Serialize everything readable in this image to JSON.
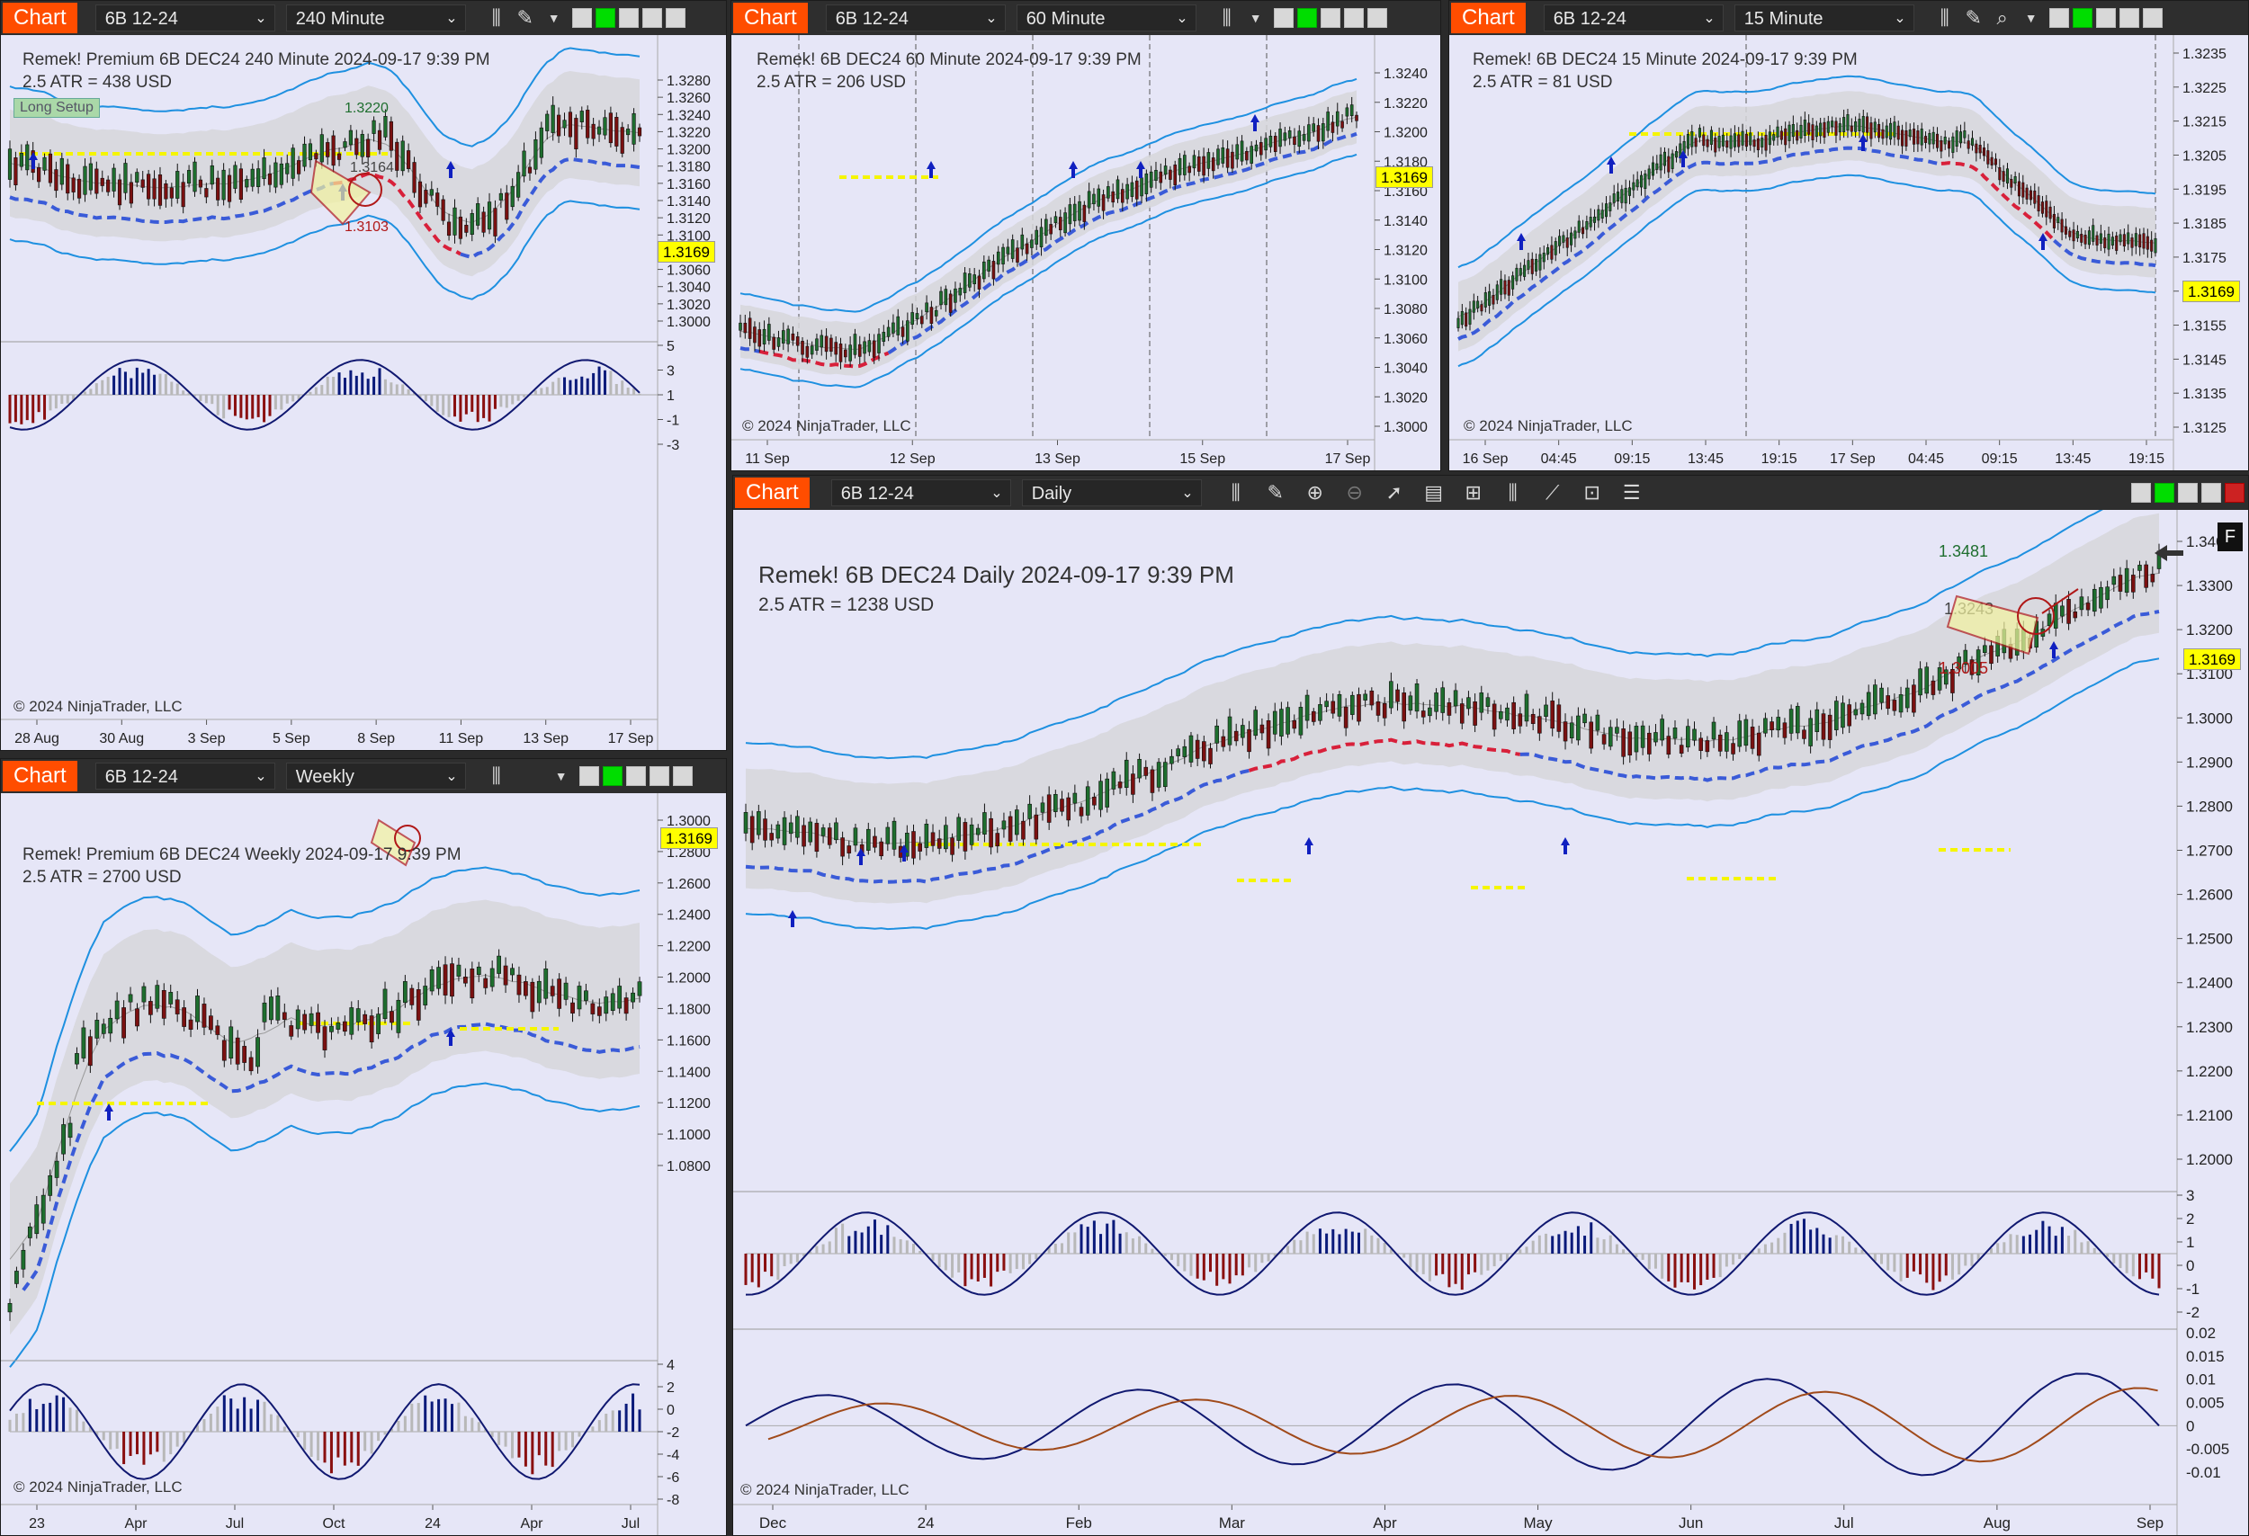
{
  "app": {
    "chart_label": "Chart"
  },
  "windows": {
    "w240": {
      "instrument": "6B 12-24",
      "timeframe": "240 Minute",
      "title": "Remek!  Premium  6B DEC24  240 Minute  2024-09-17 9:39 PM",
      "atr": "2.5 ATR = 438 USD",
      "badge": "Long Setup",
      "price": "1.3169",
      "labels": {
        "a": "1.3164",
        "b": "1.3103",
        "c": "1.3220"
      },
      "yticks": [
        "1.3280",
        "1.3260",
        "1.3240",
        "1.3220",
        "1.3200",
        "1.3180",
        "1.3160",
        "1.3140",
        "1.3120",
        "1.3100",
        "1.3080",
        "1.3060",
        "1.3040",
        "1.3020",
        "1.3000"
      ],
      "osc_ticks": [
        "5",
        "3",
        "1",
        "-1",
        "-3"
      ],
      "xticks": [
        "28 Aug",
        "30 Aug",
        "3 Sep",
        "5 Sep",
        "8 Sep",
        "11 Sep",
        "13 Sep",
        "17 Sep"
      ],
      "copyright": "© 2024 NinjaTrader, LLC"
    },
    "w60": {
      "instrument": "6B 12-24",
      "timeframe": "60 Minute",
      "title": "Remek!  6B DEC24  60 Minute  2024-09-17 9:39 PM",
      "atr": "2.5 ATR = 206 USD",
      "price": "1.3169",
      "yticks": [
        "1.3240",
        "1.3220",
        "1.3200",
        "1.3180",
        "1.3160",
        "1.3140",
        "1.3120",
        "1.3100",
        "1.3080",
        "1.3060",
        "1.3040",
        "1.3020",
        "1.3000"
      ],
      "xticks": [
        "11 Sep",
        "12 Sep",
        "13 Sep",
        "15 Sep",
        "17 Sep"
      ],
      "copyright": "© 2024 NinjaTrader, LLC"
    },
    "w15": {
      "instrument": "6B 12-24",
      "timeframe": "15 Minute",
      "title": "Remek!  6B DEC24  15 Minute  2024-09-17 9:39 PM",
      "atr": "2.5 ATR = 81 USD",
      "price": "1.3169",
      "yticks": [
        "1.3235",
        "1.3225",
        "1.3215",
        "1.3205",
        "1.3195",
        "1.3185",
        "1.3175",
        "1.3165",
        "1.3155",
        "1.3145",
        "1.3135",
        "1.3125"
      ],
      "xticks": [
        "16 Sep",
        "04:45",
        "09:15",
        "13:45",
        "19:15",
        "17 Sep",
        "04:45",
        "09:15",
        "13:45",
        "19:15"
      ],
      "copyright": "© 2024 NinjaTrader, LLC"
    },
    "wweekly": {
      "instrument": "6B 12-24",
      "timeframe": "Weekly",
      "title": "Remek!  Premium  6B DEC24  Weekly  2024-09-17 9:39 PM",
      "atr": "2.5 ATR = 2700 USD",
      "price": "1.3169",
      "yticks": [
        "1.3000",
        "1.2800",
        "1.2600",
        "1.2400",
        "1.2200",
        "1.2000",
        "1.1800",
        "1.1600",
        "1.1400",
        "1.1200",
        "1.1000",
        "1.0800"
      ],
      "osc_ticks": [
        "4",
        "2",
        "0",
        "-2",
        "-4",
        "-6",
        "-8"
      ],
      "xticks": [
        "23",
        "Apr",
        "Jul",
        "Oct",
        "24",
        "Apr",
        "Jul"
      ],
      "copyright": "© 2024 NinjaTrader, LLC"
    },
    "wdaily": {
      "instrument": "6B 12-24",
      "timeframe": "Daily",
      "title": "Remek!  6B DEC24  Daily  2024-09-17 9:39 PM",
      "atr": "2.5 ATR = 1238 USD",
      "price": "1.3169",
      "labels": {
        "top": "1.3481",
        "mid": "1.3243",
        "low": "1.3005"
      },
      "f_button": "F",
      "yticks": [
        "1.3400",
        "1.3300",
        "1.3200",
        "1.3100",
        "1.3000",
        "1.2900",
        "1.2800",
        "1.2700",
        "1.2600",
        "1.2500",
        "1.2400",
        "1.2300",
        "1.2200",
        "1.2100",
        "1.2000"
      ],
      "osc_ticks": [
        "3",
        "2",
        "1",
        "0",
        "-1",
        "-2"
      ],
      "osc2_ticks": [
        "0.02",
        "0.015",
        "0.01",
        "0.005",
        "0",
        "-0.005",
        "-0.01"
      ],
      "xticks": [
        "Dec",
        "24",
        "Feb",
        "Mar",
        "Apr",
        "May",
        "Jun",
        "Jul",
        "Aug",
        "Sep"
      ],
      "copyright": "© 2024 NinjaTrader, LLC"
    }
  },
  "colors": {
    "bg": "#e6e6f7",
    "up": "#1e6e2e",
    "down": "#7a1010",
    "band": "#1e90e0",
    "trail": "#3a5bd8",
    "trail_red": "#d8203a",
    "osc_blue": "#0a1a7a",
    "osc_red": "#8a1010",
    "osc_gray": "#b8b8b8",
    "accent": "#ff4d00"
  }
}
